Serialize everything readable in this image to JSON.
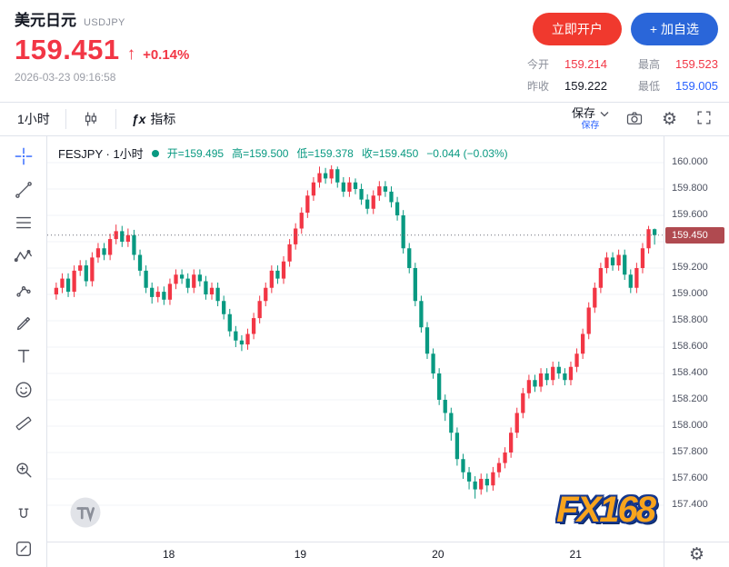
{
  "colors": {
    "up_red": "#f23645",
    "down_green": "#089981",
    "stat_blue": "#2962ff",
    "button_red": "#f0392e",
    "button_blue": "#2a66d9",
    "price_chip_bg": "#b04a50",
    "border": "#e0e3eb"
  },
  "header": {
    "symbol_name": "美元日元",
    "symbol_code": "USDJPY",
    "price": "159.451",
    "arrow": "↑",
    "change_percent": "+0.14%",
    "timestamp": "2026-03-23 09:16:58",
    "open_account_button": "立即开户",
    "add_watchlist_button": "+ 加自选",
    "stats": [
      {
        "label": "今开",
        "value": "159.214",
        "tone": "up"
      },
      {
        "label": "最高",
        "value": "159.523",
        "tone": "up"
      },
      {
        "label": "昨收",
        "value": "159.222",
        "tone": "flat"
      },
      {
        "label": "最低",
        "value": "159.005",
        "tone": "down"
      }
    ]
  },
  "toolbar": {
    "interval_label": "1小时",
    "fx_glyph": "ƒx",
    "indicators_label": "指标",
    "save_label": "保存",
    "save_sub_label": "保存"
  },
  "legend": {
    "title": "FESJPY · 1小时",
    "open": "开=159.495",
    "high": "高=159.500",
    "low": "低=159.378",
    "close": "收=159.450",
    "change": "−0.044 (−0.03%)"
  },
  "fx168_logo": "FX168",
  "chart_data": {
    "type": "candlestick",
    "symbol": "FESJPY",
    "interval": "1小时",
    "up_color": "#f23645",
    "down_color": "#089981",
    "ylim": [
      157.124,
      160.2
    ],
    "y_ticks": [
      160.0,
      159.8,
      159.6,
      159.4,
      159.2,
      159.0,
      158.8,
      158.6,
      158.4,
      158.2,
      158.0,
      157.8,
      157.6,
      157.4
    ],
    "current_price": 159.45,
    "current_price_label": "159.450",
    "x_ticks": [
      {
        "label": "18",
        "index": 19
      },
      {
        "label": "19",
        "index": 41
      },
      {
        "label": "20",
        "index": 64
      },
      {
        "label": "21",
        "index": 87
      }
    ],
    "candles": [
      [
        159.0,
        159.09,
        158.96,
        159.05
      ],
      [
        159.05,
        159.16,
        159.01,
        159.12
      ],
      [
        159.12,
        159.16,
        158.98,
        159.02
      ],
      [
        159.02,
        159.22,
        158.98,
        159.18
      ],
      [
        159.18,
        159.26,
        159.14,
        159.22
      ],
      [
        159.22,
        159.26,
        159.06,
        159.1
      ],
      [
        159.1,
        159.32,
        159.06,
        159.28
      ],
      [
        159.28,
        159.39,
        159.24,
        159.35
      ],
      [
        159.35,
        159.39,
        159.26,
        159.3
      ],
      [
        159.3,
        159.46,
        159.26,
        159.42
      ],
      [
        159.42,
        159.53,
        159.38,
        159.48
      ],
      [
        159.48,
        159.52,
        159.36,
        159.4
      ],
      [
        159.4,
        159.5,
        159.36,
        159.45
      ],
      [
        159.45,
        159.49,
        159.26,
        159.3
      ],
      [
        159.3,
        159.34,
        159.14,
        159.18
      ],
      [
        159.18,
        159.22,
        159.01,
        159.05
      ],
      [
        159.05,
        159.09,
        158.93,
        158.98
      ],
      [
        158.98,
        159.06,
        158.94,
        159.02
      ],
      [
        159.02,
        159.06,
        158.92,
        158.96
      ],
      [
        158.96,
        159.12,
        158.92,
        159.08
      ],
      [
        159.08,
        159.19,
        159.04,
        159.15
      ],
      [
        159.15,
        159.19,
        159.08,
        159.12
      ],
      [
        159.12,
        159.16,
        159.01,
        159.05
      ],
      [
        159.05,
        159.19,
        159.01,
        159.15
      ],
      [
        159.15,
        159.19,
        159.06,
        159.1
      ],
      [
        159.1,
        159.14,
        158.96,
        159.0
      ],
      [
        159.0,
        159.09,
        158.96,
        159.05
      ],
      [
        159.05,
        159.09,
        158.91,
        158.95
      ],
      [
        158.95,
        158.99,
        158.81,
        158.85
      ],
      [
        158.85,
        158.89,
        158.68,
        158.72
      ],
      [
        158.72,
        158.76,
        158.6,
        158.65
      ],
      [
        158.65,
        158.69,
        158.57,
        158.62
      ],
      [
        158.62,
        158.74,
        158.58,
        158.7
      ],
      [
        158.7,
        158.86,
        158.66,
        158.82
      ],
      [
        158.82,
        158.99,
        158.78,
        158.95
      ],
      [
        158.95,
        159.09,
        158.91,
        159.05
      ],
      [
        159.05,
        159.22,
        159.01,
        159.18
      ],
      [
        159.18,
        159.22,
        159.08,
        159.12
      ],
      [
        159.12,
        159.29,
        159.08,
        159.25
      ],
      [
        159.25,
        159.42,
        159.21,
        159.38
      ],
      [
        159.38,
        159.54,
        159.34,
        159.5
      ],
      [
        159.5,
        159.66,
        159.46,
        159.62
      ],
      [
        159.62,
        159.79,
        159.58,
        159.75
      ],
      [
        159.75,
        159.89,
        159.71,
        159.85
      ],
      [
        159.85,
        159.97,
        159.81,
        159.92
      ],
      [
        159.92,
        159.96,
        159.84,
        159.88
      ],
      [
        159.88,
        159.98,
        159.84,
        159.95
      ],
      [
        159.95,
        159.97,
        159.81,
        159.85
      ],
      [
        159.85,
        159.89,
        159.74,
        159.78
      ],
      [
        159.78,
        159.89,
        159.74,
        159.85
      ],
      [
        159.85,
        159.88,
        159.76,
        159.8
      ],
      [
        159.8,
        159.84,
        159.68,
        159.72
      ],
      [
        159.72,
        159.76,
        159.61,
        159.65
      ],
      [
        159.65,
        159.79,
        159.61,
        159.75
      ],
      [
        159.75,
        159.86,
        159.71,
        159.82
      ],
      [
        159.82,
        159.86,
        159.74,
        159.78
      ],
      [
        159.78,
        159.82,
        159.66,
        159.7
      ],
      [
        159.7,
        159.74,
        159.56,
        159.6
      ],
      [
        159.6,
        159.64,
        159.31,
        159.35
      ],
      [
        159.35,
        159.39,
        159.16,
        159.2
      ],
      [
        159.2,
        159.24,
        158.91,
        158.95
      ],
      [
        158.95,
        158.99,
        158.71,
        158.75
      ],
      [
        158.75,
        158.79,
        158.51,
        158.55
      ],
      [
        158.55,
        158.59,
        158.36,
        158.4
      ],
      [
        158.4,
        158.44,
        158.16,
        158.2
      ],
      [
        158.2,
        158.24,
        158.04,
        158.1
      ],
      [
        158.1,
        158.14,
        157.89,
        157.95
      ],
      [
        157.95,
        157.99,
        157.7,
        157.75
      ],
      [
        157.75,
        157.79,
        157.6,
        157.65
      ],
      [
        157.65,
        157.69,
        157.52,
        157.58
      ],
      [
        157.58,
        157.62,
        157.45,
        157.52
      ],
      [
        157.52,
        157.64,
        157.48,
        157.6
      ],
      [
        157.6,
        157.64,
        157.5,
        157.55
      ],
      [
        157.55,
        157.69,
        157.51,
        157.65
      ],
      [
        157.65,
        157.76,
        157.61,
        157.72
      ],
      [
        157.72,
        157.84,
        157.68,
        157.8
      ],
      [
        157.8,
        157.99,
        157.76,
        157.95
      ],
      [
        157.95,
        158.14,
        157.91,
        158.1
      ],
      [
        158.1,
        158.29,
        158.06,
        158.25
      ],
      [
        158.25,
        158.39,
        158.21,
        158.35
      ],
      [
        158.35,
        158.39,
        158.26,
        158.3
      ],
      [
        158.3,
        158.44,
        158.26,
        158.4
      ],
      [
        158.4,
        158.44,
        158.31,
        158.35
      ],
      [
        158.35,
        158.49,
        158.31,
        158.45
      ],
      [
        158.45,
        158.49,
        158.36,
        158.4
      ],
      [
        158.4,
        158.44,
        158.31,
        158.35
      ],
      [
        158.35,
        158.49,
        158.31,
        158.45
      ],
      [
        158.45,
        158.59,
        158.41,
        158.55
      ],
      [
        158.55,
        158.74,
        158.51,
        158.7
      ],
      [
        158.7,
        158.94,
        158.66,
        158.9
      ],
      [
        158.9,
        159.09,
        158.86,
        159.05
      ],
      [
        159.05,
        159.24,
        159.01,
        159.2
      ],
      [
        159.2,
        159.32,
        159.16,
        159.28
      ],
      [
        159.28,
        159.32,
        159.18,
        159.22
      ],
      [
        159.22,
        159.34,
        159.18,
        159.3
      ],
      [
        159.3,
        159.34,
        159.11,
        159.15
      ],
      [
        159.15,
        159.19,
        159.01,
        159.05
      ],
      [
        159.05,
        159.24,
        159.01,
        159.2
      ],
      [
        159.2,
        159.39,
        159.16,
        159.35
      ],
      [
        159.35,
        159.52,
        159.31,
        159.495
      ],
      [
        159.495,
        159.5,
        159.378,
        159.45
      ]
    ]
  }
}
